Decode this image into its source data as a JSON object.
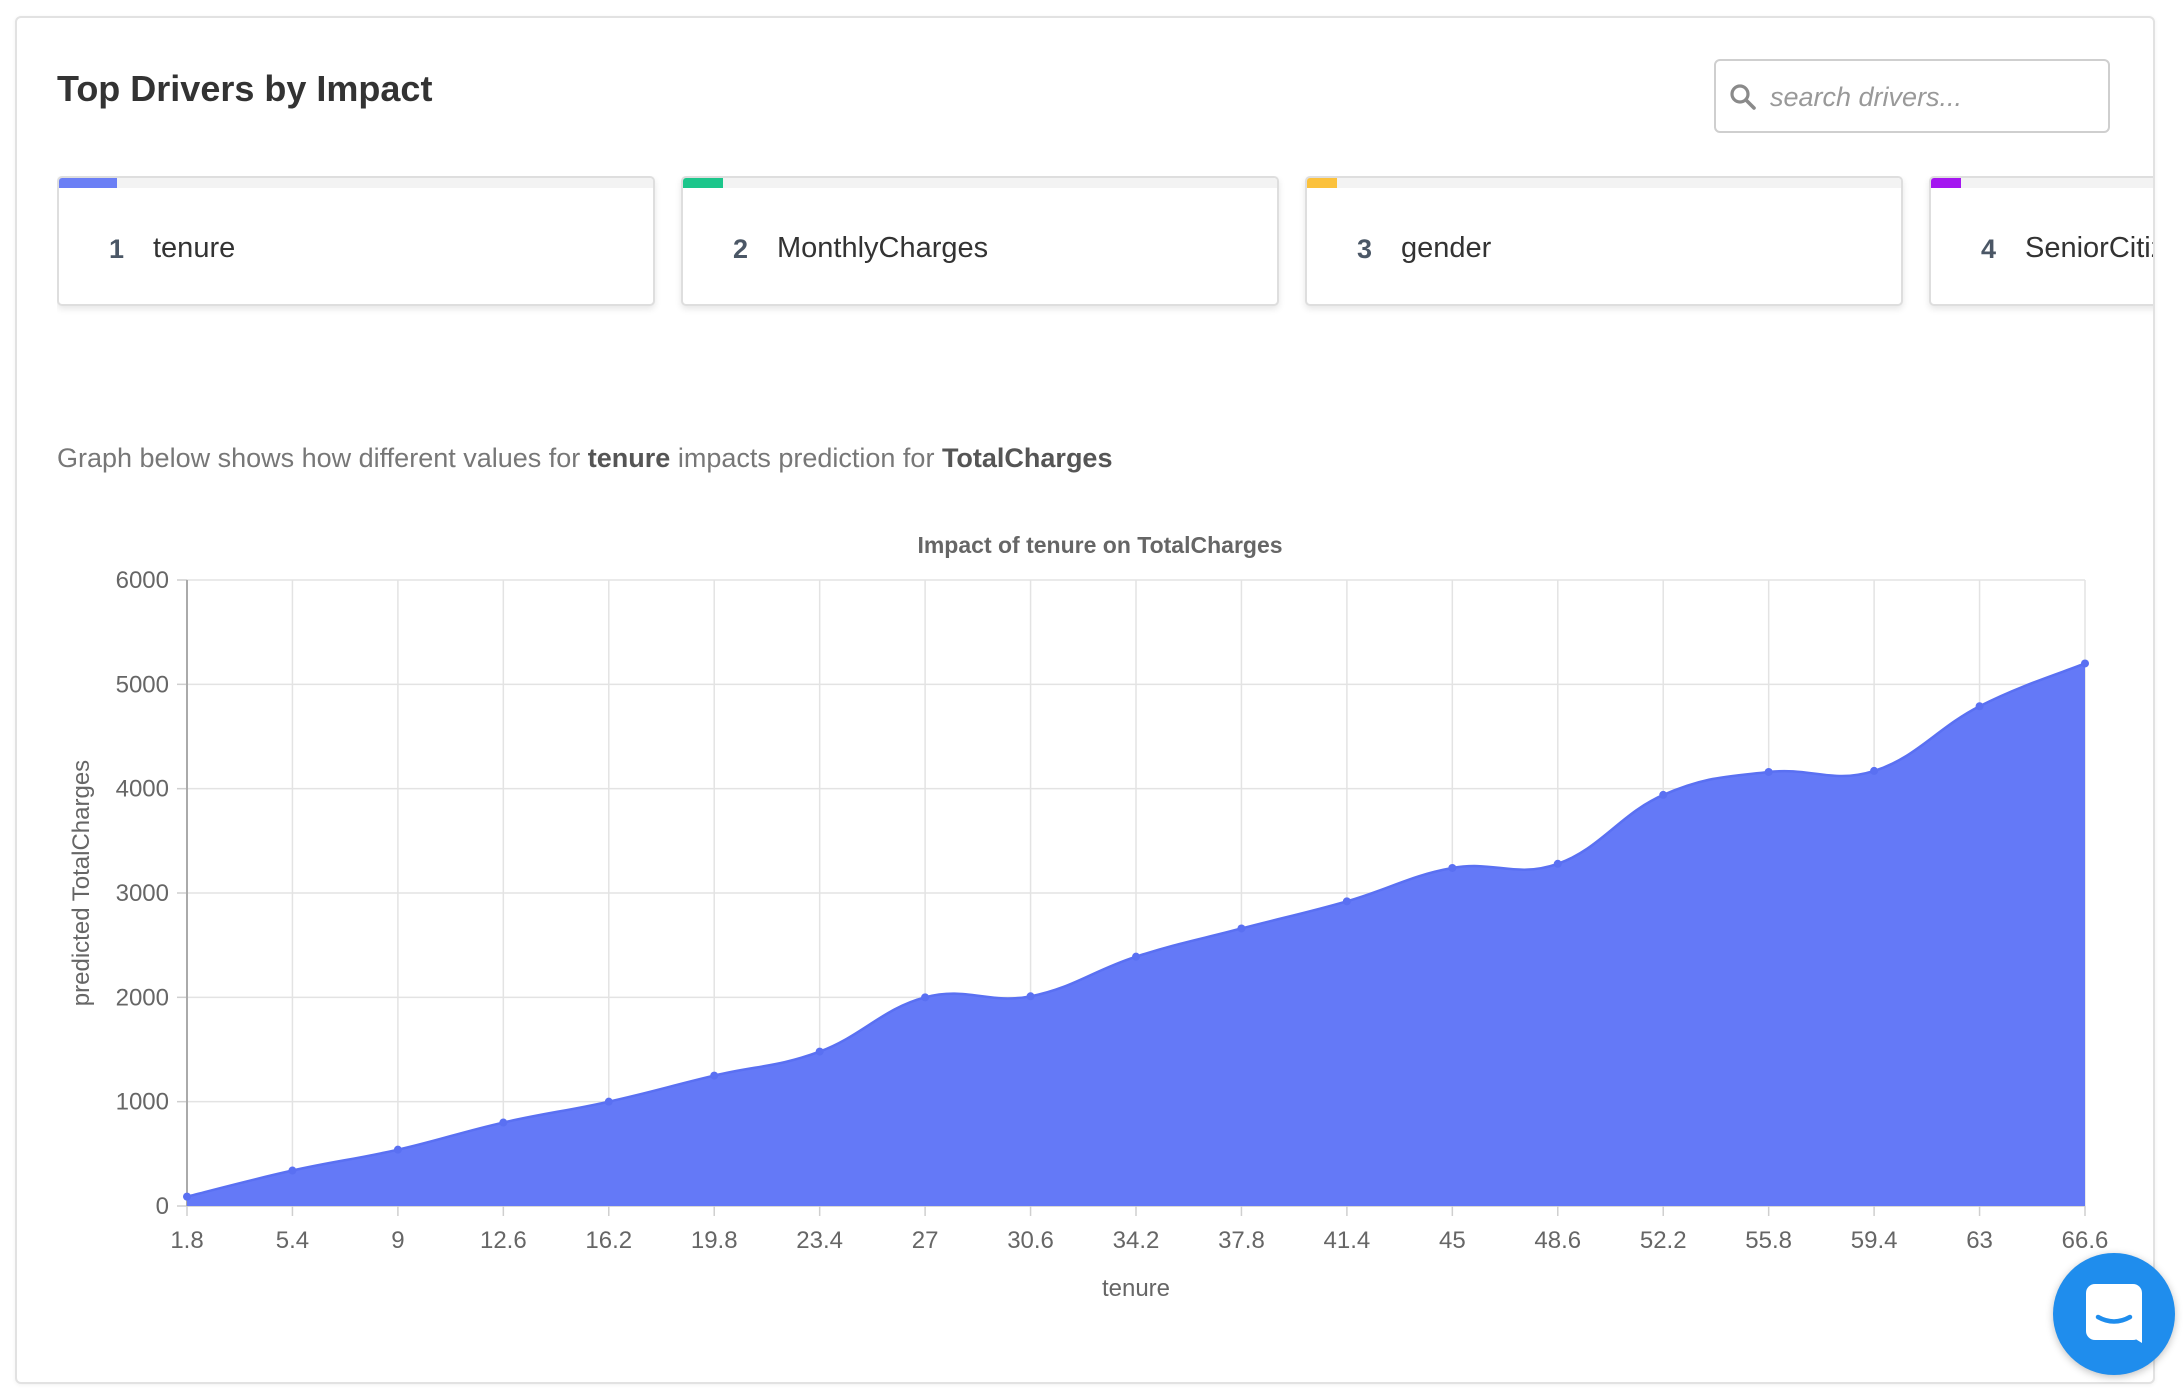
{
  "header": {
    "title": "Top Drivers by Impact"
  },
  "search": {
    "placeholder": "search drivers..."
  },
  "drivers": [
    {
      "rank": "1",
      "name": "tenure",
      "color": "#6b7ff5"
    },
    {
      "rank": "2",
      "name": "MonthlyCharges",
      "color": "#1cc68b"
    },
    {
      "rank": "3",
      "name": "gender",
      "color": "#fbc13c"
    },
    {
      "rank": "4",
      "name": "SeniorCitizen",
      "color": "#a416f0"
    }
  ],
  "description": {
    "prefix": "Graph below shows how different values for ",
    "feature": "tenure",
    "middle": " impacts prediction for ",
    "target": "TotalCharges"
  },
  "chart_data": {
    "type": "area",
    "title": "Impact of tenure on TotalCharges",
    "xlabel": "tenure",
    "ylabel": "predicted TotalCharges",
    "x": [
      1.8,
      5.4,
      9,
      12.6,
      16.2,
      19.8,
      23.4,
      27,
      30.6,
      34.2,
      37.8,
      41.4,
      45,
      48.6,
      52.2,
      55.8,
      59.4,
      63,
      66.6
    ],
    "series": [
      {
        "values": [
          90,
          340,
          540,
          800,
          1000,
          1250,
          1480,
          2000,
          2010,
          2390,
          2660,
          2920,
          3240,
          3280,
          3940,
          4160,
          4170,
          4790,
          5200
        ]
      }
    ],
    "ylim": [
      0,
      6000
    ],
    "yticks": [
      0,
      1000,
      2000,
      3000,
      4000,
      5000,
      6000
    ],
    "grid": true,
    "color": "#6479f7"
  }
}
